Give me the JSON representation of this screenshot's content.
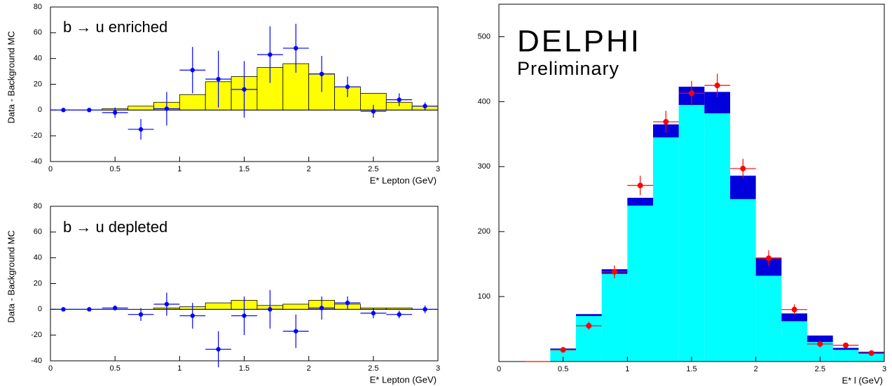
{
  "chart_data": [
    {
      "type": "histogram",
      "annotation": "b → u enriched",
      "xlabel": "E* Lepton (GeV)",
      "ylabel": "Data - Background MC",
      "bins": [
        0,
        0.2,
        0.4,
        0.6,
        0.8,
        1.0,
        1.2,
        1.4,
        1.6,
        1.8,
        2.0,
        2.2,
        2.4,
        2.6,
        2.8,
        3.0
      ],
      "series": [
        {
          "color": "#ffff00",
          "values": [
            0,
            0,
            1,
            3,
            6,
            12,
            22,
            26,
            33,
            36,
            28,
            18,
            13,
            6,
            3
          ]
        }
      ],
      "points": {
        "color": "#0000ff",
        "values": [
          0,
          0,
          -2,
          -15,
          1,
          31,
          24,
          16,
          43,
          48,
          28,
          18,
          -1,
          8,
          3
        ],
        "errors": [
          1,
          1,
          4,
          8,
          13,
          18,
          22,
          22,
          22,
          19,
          14,
          8,
          5,
          5,
          3
        ]
      },
      "xlim": [
        0,
        3
      ],
      "ylim": [
        -40,
        80
      ],
      "xticks": [
        0,
        0.5,
        1,
        1.5,
        2,
        2.5,
        3
      ],
      "yticks": [
        -40,
        -20,
        0,
        20,
        40,
        60,
        80
      ]
    },
    {
      "type": "histogram",
      "annotation": "b → u depleted",
      "xlabel": "E* Lepton (GeV)",
      "ylabel": "Data - Background MC",
      "bins": [
        0,
        0.2,
        0.4,
        0.6,
        0.8,
        1.0,
        1.2,
        1.4,
        1.6,
        1.8,
        2.0,
        2.2,
        2.4,
        2.6,
        2.8,
        3.0
      ],
      "series": [
        {
          "color": "#ffff00",
          "values": [
            0,
            0,
            0,
            0,
            1,
            2,
            5,
            7,
            3,
            4,
            7,
            4,
            1,
            1,
            0
          ]
        }
      ],
      "points": {
        "color": "#0000ff",
        "values": [
          0,
          0,
          1,
          -4,
          4,
          -5,
          -31,
          -5,
          0,
          -17,
          1,
          5,
          -3,
          -4,
          0
        ],
        "errors": [
          1,
          1,
          2,
          5,
          9,
          10,
          14,
          15,
          15,
          13,
          9,
          5,
          4,
          3,
          3
        ]
      },
      "xlim": [
        0,
        3
      ],
      "ylim": [
        -40,
        80
      ],
      "xticks": [
        0,
        0.5,
        1,
        1.5,
        2,
        2.5,
        3
      ],
      "yticks": [
        -40,
        -20,
        0,
        20,
        40,
        60,
        80
      ]
    },
    {
      "type": "stacked-histogram",
      "annotation": "DELPHI",
      "subtitle": "Preliminary",
      "xlabel": "E* l (GeV)",
      "bins": [
        0.2,
        0.4,
        0.6,
        0.8,
        1.0,
        1.2,
        1.4,
        1.6,
        1.8,
        2.0,
        2.2,
        2.4,
        2.6,
        2.8,
        3.0
      ],
      "series": [
        {
          "color": "#00ffff",
          "values": [
            0,
            18,
            70,
            135,
            240,
            345,
            395,
            382,
            250,
            132,
            62,
            30,
            18,
            12
          ]
        },
        {
          "color": "#0000dd",
          "values": [
            0,
            2,
            3,
            7,
            12,
            20,
            28,
            33,
            36,
            28,
            12,
            10,
            3,
            3
          ]
        }
      ],
      "points": {
        "color": "#ff0000",
        "values": [
          0,
          18,
          55,
          138,
          271,
          369,
          413,
          425,
          297,
          159,
          80,
          27,
          25,
          13
        ],
        "errors": [
          0,
          3,
          6,
          10,
          15,
          17,
          19,
          18,
          15,
          12,
          8,
          5,
          4,
          3
        ]
      },
      "xlim": [
        0,
        3
      ],
      "ylim": [
        0,
        550
      ],
      "xticks": [
        0,
        0.5,
        1,
        1.5,
        2,
        2.5,
        3
      ],
      "yticks": [
        100,
        200,
        300,
        400,
        500
      ]
    }
  ]
}
